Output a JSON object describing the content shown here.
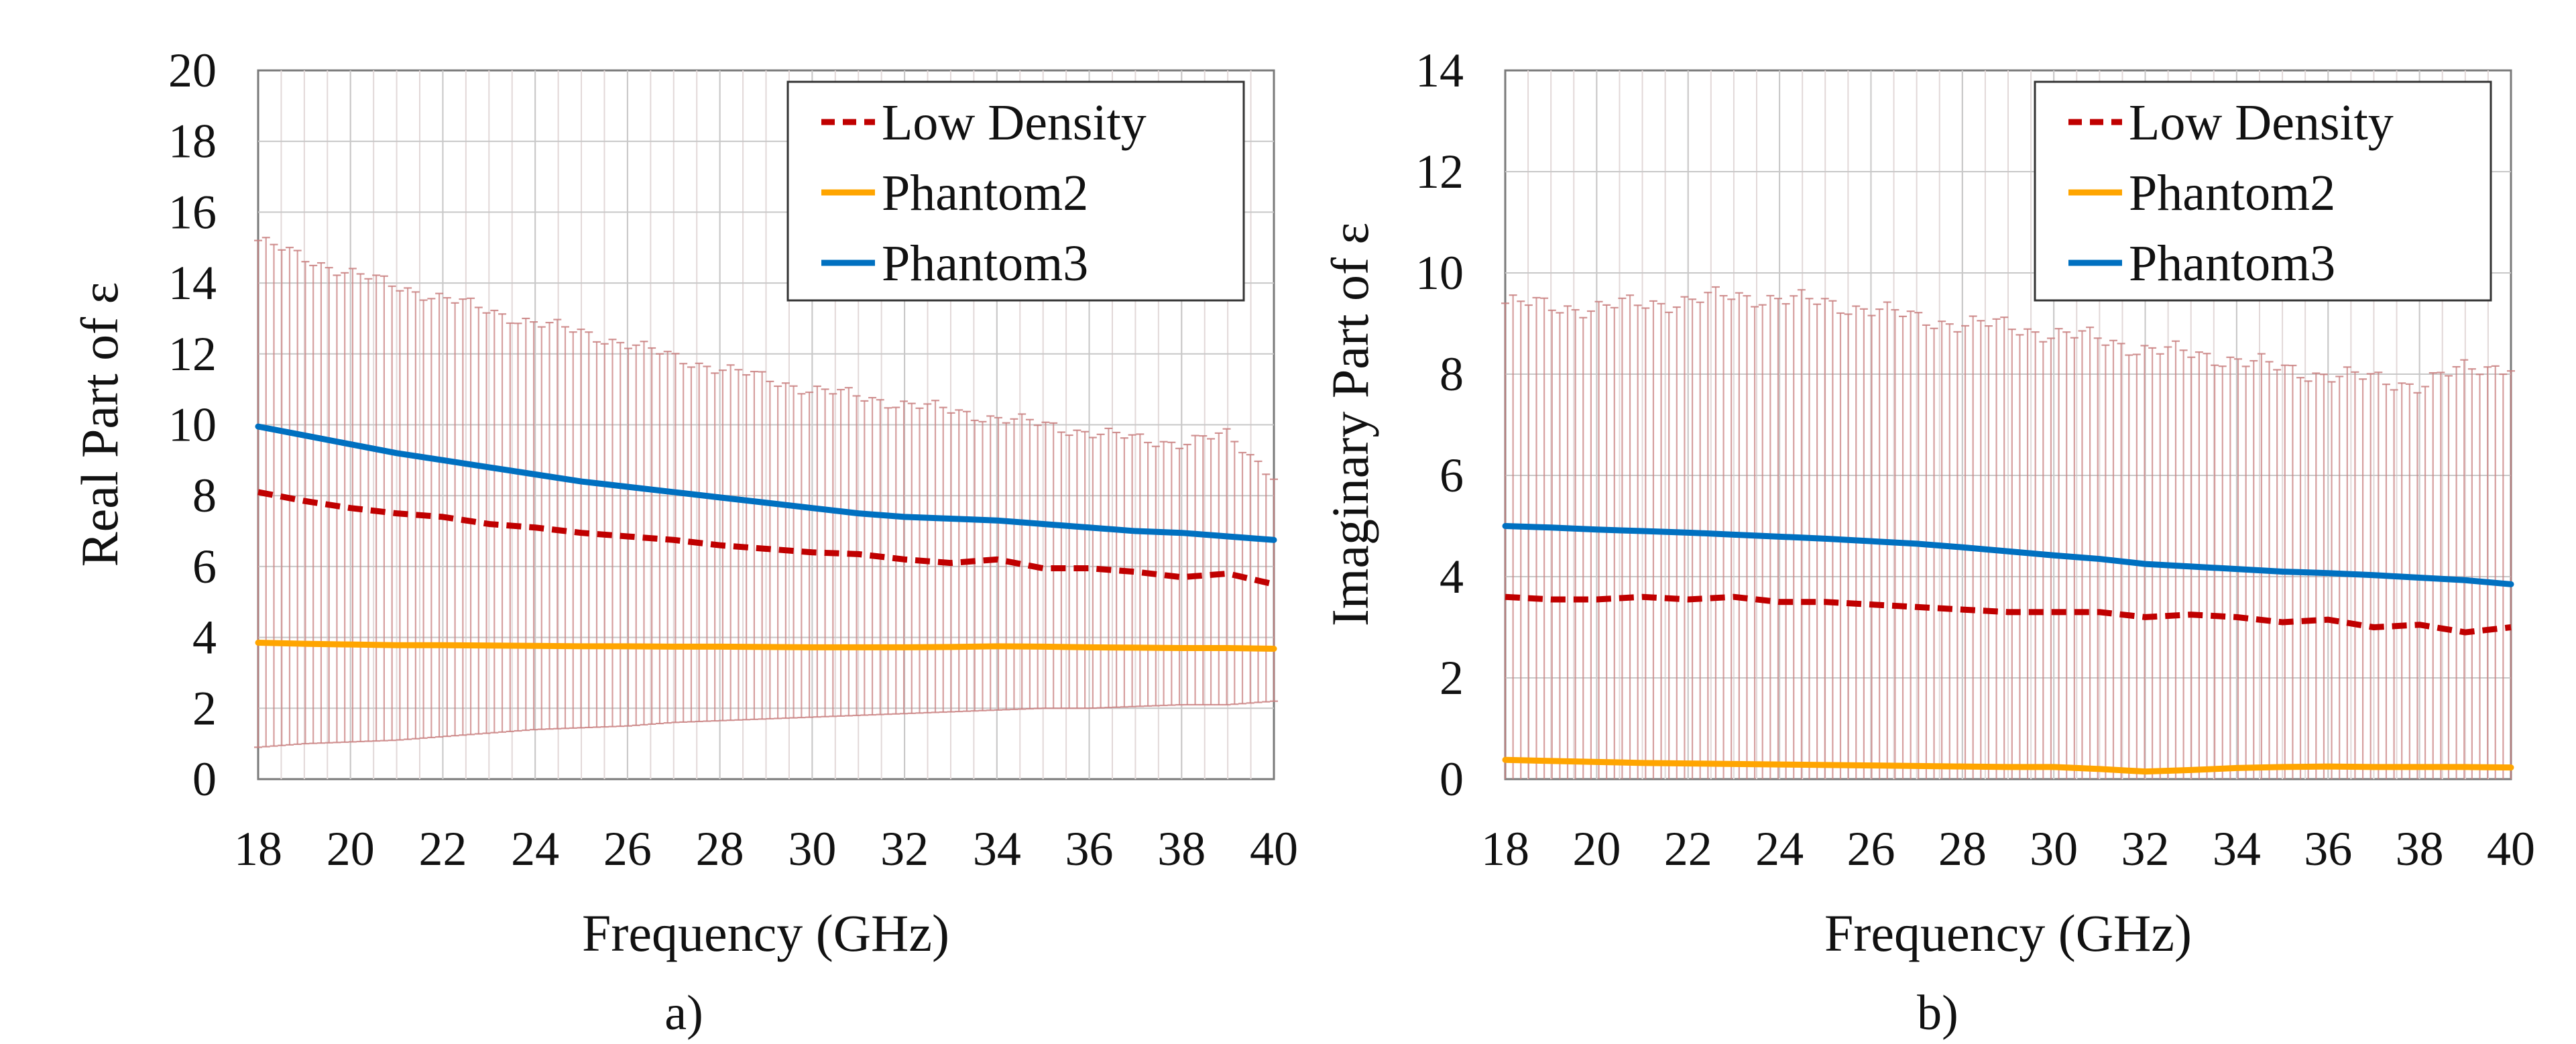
{
  "chart_data": [
    {
      "panel": "a)",
      "type": "line",
      "title": "",
      "xlabel": "Frequency (GHz)",
      "ylabel": "Real Part of ε",
      "xlim": [
        18,
        40
      ],
      "ylim": [
        0,
        20
      ],
      "xticks": [
        "18",
        "20",
        "22",
        "24",
        "26",
        "28",
        "30",
        "32",
        "34",
        "36",
        "38",
        "40"
      ],
      "yticks": [
        "0",
        "2",
        "4",
        "6",
        "8",
        "10",
        "12",
        "14",
        "16",
        "18",
        "20"
      ],
      "grid": true,
      "legend_position": "top-right",
      "x": [
        18,
        19,
        20,
        21,
        22,
        23,
        24,
        25,
        26,
        27,
        28,
        29,
        30,
        31,
        32,
        33,
        34,
        35,
        36,
        37,
        38,
        39,
        40
      ],
      "series": [
        {
          "name": "Low Density",
          "style": "dashed",
          "color": "#c00000",
          "values": [
            8.1,
            7.85,
            7.65,
            7.5,
            7.4,
            7.2,
            7.1,
            6.95,
            6.85,
            6.75,
            6.6,
            6.5,
            6.4,
            6.35,
            6.2,
            6.1,
            6.2,
            5.95,
            5.95,
            5.85,
            5.7,
            5.8,
            5.5
          ]
        },
        {
          "name": "Phantom2",
          "style": "solid",
          "color": "#ffa500",
          "values": [
            3.85,
            3.82,
            3.8,
            3.78,
            3.78,
            3.77,
            3.76,
            3.75,
            3.75,
            3.74,
            3.74,
            3.73,
            3.72,
            3.72,
            3.72,
            3.73,
            3.75,
            3.74,
            3.72,
            3.71,
            3.7,
            3.7,
            3.68
          ]
        },
        {
          "name": "Phantom3",
          "style": "solid",
          "color": "#0070c0",
          "values": [
            9.95,
            9.7,
            9.45,
            9.2,
            9.0,
            8.8,
            8.6,
            8.4,
            8.25,
            8.1,
            7.95,
            7.8,
            7.65,
            7.5,
            7.4,
            7.35,
            7.3,
            7.2,
            7.1,
            7.0,
            6.95,
            6.85,
            6.75
          ]
        }
      ],
      "error_band": {
        "series": "Low Density",
        "color": "#c98080",
        "upper": [
          15.2,
          14.7,
          14.3,
          13.9,
          13.6,
          13.2,
          12.9,
          12.6,
          12.3,
          11.9,
          11.6,
          11.3,
          11.0,
          10.8,
          10.6,
          10.4,
          10.2,
          10.0,
          9.8,
          9.6,
          9.5,
          9.7,
          8.6
        ],
        "lower": [
          0.9,
          1.0,
          1.05,
          1.1,
          1.2,
          1.3,
          1.4,
          1.45,
          1.5,
          1.6,
          1.65,
          1.7,
          1.75,
          1.8,
          1.85,
          1.9,
          1.95,
          2.0,
          2.0,
          2.05,
          2.1,
          2.1,
          2.2
        ]
      }
    },
    {
      "panel": "b)",
      "type": "line",
      "title": "",
      "xlabel": "Frequency (GHz)",
      "ylabel": "Imaginary Part of ε",
      "xlim": [
        18,
        40
      ],
      "ylim": [
        0,
        14
      ],
      "xticks": [
        "18",
        "20",
        "22",
        "24",
        "26",
        "28",
        "30",
        "32",
        "34",
        "36",
        "38",
        "40"
      ],
      "yticks": [
        "0",
        "2",
        "4",
        "6",
        "8",
        "10",
        "12",
        "14"
      ],
      "grid": true,
      "legend_position": "top-right",
      "x": [
        18,
        19,
        20,
        21,
        22,
        23,
        24,
        25,
        26,
        27,
        28,
        29,
        30,
        31,
        32,
        33,
        34,
        35,
        36,
        37,
        38,
        39,
        40
      ],
      "series": [
        {
          "name": "Low Density",
          "style": "dashed",
          "color": "#c00000",
          "values": [
            3.6,
            3.55,
            3.55,
            3.6,
            3.55,
            3.6,
            3.5,
            3.5,
            3.45,
            3.4,
            3.35,
            3.3,
            3.3,
            3.3,
            3.2,
            3.25,
            3.2,
            3.1,
            3.15,
            3.0,
            3.05,
            2.9,
            3.0
          ]
        },
        {
          "name": "Phantom2",
          "style": "solid",
          "color": "#ffa500",
          "values": [
            0.38,
            0.36,
            0.34,
            0.32,
            0.31,
            0.3,
            0.29,
            0.28,
            0.27,
            0.26,
            0.25,
            0.24,
            0.24,
            0.2,
            0.15,
            0.18,
            0.22,
            0.24,
            0.25,
            0.24,
            0.24,
            0.24,
            0.23
          ]
        },
        {
          "name": "Phantom3",
          "style": "solid",
          "color": "#0070c0",
          "values": [
            5.0,
            4.97,
            4.93,
            4.9,
            4.87,
            4.83,
            4.79,
            4.75,
            4.7,
            4.65,
            4.58,
            4.5,
            4.42,
            4.35,
            4.25,
            4.2,
            4.15,
            4.1,
            4.07,
            4.03,
            3.98,
            3.93,
            3.85
          ]
        }
      ],
      "error_band": {
        "series": "Low Density",
        "color": "#c98080",
        "upper": [
          9.4,
          9.35,
          9.3,
          9.4,
          9.45,
          9.55,
          9.5,
          9.4,
          9.3,
          9.1,
          9.0,
          8.95,
          8.8,
          8.7,
          8.5,
          8.4,
          8.3,
          8.1,
          8.0,
          7.9,
          7.8,
          8.1,
          8.2
        ],
        "lower": [
          0,
          0,
          0,
          0,
          0,
          0,
          0,
          0,
          0,
          0,
          0,
          0,
          0,
          0,
          0,
          0,
          0,
          0,
          0,
          0,
          0,
          0,
          0
        ]
      }
    }
  ]
}
